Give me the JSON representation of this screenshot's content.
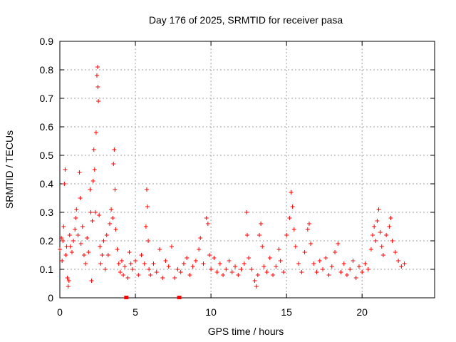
{
  "chart_data": {
    "type": "scatter",
    "title": "Day 176 of 2025, SRMTID for receiver pasa",
    "xlabel": "GPS time / hours",
    "ylabel": "SRMTID / TECUs",
    "xlim": [
      0,
      24.8
    ],
    "ylim": [
      0,
      0.9
    ],
    "xticks": [
      0,
      5,
      10,
      15,
      20
    ],
    "yticks": [
      0,
      0.1,
      0.2,
      0.3,
      0.4,
      0.5,
      0.6,
      0.7,
      0.8,
      0.9
    ],
    "xtick_labels": [
      "0",
      "5",
      "10",
      "15",
      "20"
    ],
    "ytick_labels": [
      "0",
      "0.1",
      "0.2",
      "0.3",
      "0.4",
      "0.5",
      "0.6",
      "0.7",
      "0.8",
      "0.9"
    ],
    "grid": true,
    "marker": "+",
    "color": "#ff0000",
    "series": [
      {
        "name": "SRMTID",
        "points": [
          [
            0.0,
            0.17
          ],
          [
            0.1,
            0.21
          ],
          [
            0.15,
            0.13
          ],
          [
            0.2,
            0.2
          ],
          [
            0.25,
            0.25
          ],
          [
            0.3,
            0.4
          ],
          [
            0.35,
            0.45
          ],
          [
            0.4,
            0.15
          ],
          [
            0.45,
            0.18
          ],
          [
            0.5,
            0.07
          ],
          [
            0.55,
            0.04
          ],
          [
            0.6,
            0.06
          ],
          [
            0.65,
            0.22
          ],
          [
            0.7,
            0.18
          ],
          [
            0.8,
            0.16
          ],
          [
            0.9,
            0.2
          ],
          [
            1.0,
            0.24
          ],
          [
            1.05,
            0.28
          ],
          [
            1.1,
            0.31
          ],
          [
            1.2,
            0.22
          ],
          [
            1.3,
            0.44
          ],
          [
            1.35,
            0.35
          ],
          [
            1.4,
            0.19
          ],
          [
            1.5,
            0.25
          ],
          [
            1.6,
            0.15
          ],
          [
            1.7,
            0.12
          ],
          [
            1.8,
            0.21
          ],
          [
            1.9,
            0.16
          ],
          [
            2.0,
            0.38
          ],
          [
            2.05,
            0.3
          ],
          [
            2.1,
            0.06
          ],
          [
            2.15,
            0.27
          ],
          [
            2.2,
            0.41
          ],
          [
            2.25,
            0.52
          ],
          [
            2.3,
            0.45
          ],
          [
            2.35,
            0.3
          ],
          [
            2.4,
            0.58
          ],
          [
            2.45,
            0.78
          ],
          [
            2.5,
            0.81
          ],
          [
            2.52,
            0.74
          ],
          [
            2.55,
            0.69
          ],
          [
            2.6,
            0.29
          ],
          [
            2.65,
            0.18
          ],
          [
            2.7,
            0.12
          ],
          [
            2.8,
            0.15
          ],
          [
            2.9,
            0.2
          ],
          [
            3.0,
            0.1
          ],
          [
            3.1,
            0.22
          ],
          [
            3.2,
            0.15
          ],
          [
            3.3,
            0.26
          ],
          [
            3.4,
            0.31
          ],
          [
            3.5,
            0.28
          ],
          [
            3.55,
            0.47
          ],
          [
            3.6,
            0.52
          ],
          [
            3.65,
            0.38
          ],
          [
            3.7,
            0.24
          ],
          [
            3.8,
            0.17
          ],
          [
            3.9,
            0.12
          ],
          [
            4.0,
            0.09
          ],
          [
            4.1,
            0.13
          ],
          [
            4.2,
            0.08
          ],
          [
            4.3,
            0.11
          ],
          [
            4.5,
            0.07
          ],
          [
            4.6,
            0.16
          ],
          [
            4.7,
            0.12
          ],
          [
            4.8,
            0.1
          ],
          [
            5.0,
            0.13
          ],
          [
            5.2,
            0.08
          ],
          [
            5.4,
            0.15
          ],
          [
            5.6,
            0.12
          ],
          [
            5.7,
            0.25
          ],
          [
            5.75,
            0.38
          ],
          [
            5.8,
            0.32
          ],
          [
            5.85,
            0.2
          ],
          [
            5.9,
            0.1
          ],
          [
            6.0,
            0.08
          ],
          [
            6.2,
            0.12
          ],
          [
            6.4,
            0.09
          ],
          [
            6.6,
            0.17
          ],
          [
            6.8,
            0.07
          ],
          [
            7.0,
            0.13
          ],
          [
            7.2,
            0.11
          ],
          [
            7.4,
            0.18
          ],
          [
            7.6,
            0.07
          ],
          [
            7.8,
            0.1
          ],
          [
            8.0,
            0.09
          ],
          [
            8.2,
            0.12
          ],
          [
            8.4,
            0.14
          ],
          [
            8.6,
            0.08
          ],
          [
            8.8,
            0.11
          ],
          [
            9.0,
            0.13
          ],
          [
            9.2,
            0.17
          ],
          [
            9.3,
            0.21
          ],
          [
            9.5,
            0.12
          ],
          [
            9.7,
            0.28
          ],
          [
            9.8,
            0.26
          ],
          [
            9.9,
            0.15
          ],
          [
            10.0,
            0.1
          ],
          [
            10.2,
            0.14
          ],
          [
            10.4,
            0.09
          ],
          [
            10.6,
            0.12
          ],
          [
            10.8,
            0.08
          ],
          [
            11.0,
            0.1
          ],
          [
            11.2,
            0.13
          ],
          [
            11.4,
            0.09
          ],
          [
            11.6,
            0.11
          ],
          [
            11.8,
            0.08
          ],
          [
            12.0,
            0.1
          ],
          [
            12.2,
            0.12
          ],
          [
            12.35,
            0.3
          ],
          [
            12.4,
            0.22
          ],
          [
            12.5,
            0.14
          ],
          [
            12.7,
            0.1
          ],
          [
            12.9,
            0.06
          ],
          [
            13.0,
            0.04
          ],
          [
            13.1,
            0.08
          ],
          [
            13.2,
            0.22
          ],
          [
            13.3,
            0.26
          ],
          [
            13.4,
            0.18
          ],
          [
            13.5,
            0.11
          ],
          [
            13.7,
            0.09
          ],
          [
            13.9,
            0.14
          ],
          [
            14.1,
            0.08
          ],
          [
            14.3,
            0.11
          ],
          [
            14.5,
            0.17
          ],
          [
            14.6,
            0.13
          ],
          [
            14.8,
            0.09
          ],
          [
            15.0,
            0.22
          ],
          [
            15.2,
            0.28
          ],
          [
            15.3,
            0.37
          ],
          [
            15.4,
            0.32
          ],
          [
            15.5,
            0.24
          ],
          [
            15.6,
            0.18
          ],
          [
            15.8,
            0.12
          ],
          [
            16.0,
            0.09
          ],
          [
            16.2,
            0.16
          ],
          [
            16.4,
            0.24
          ],
          [
            16.5,
            0.26
          ],
          [
            16.6,
            0.19
          ],
          [
            16.8,
            0.12
          ],
          [
            17.0,
            0.09
          ],
          [
            17.2,
            0.13
          ],
          [
            17.4,
            0.1
          ],
          [
            17.6,
            0.14
          ],
          [
            17.8,
            0.08
          ],
          [
            18.0,
            0.11
          ],
          [
            18.2,
            0.16
          ],
          [
            18.4,
            0.19
          ],
          [
            18.6,
            0.09
          ],
          [
            18.8,
            0.12
          ],
          [
            19.0,
            0.08
          ],
          [
            19.2,
            0.1
          ],
          [
            19.4,
            0.13
          ],
          [
            19.6,
            0.07
          ],
          [
            19.8,
            0.11
          ],
          [
            20.0,
            0.09
          ],
          [
            20.2,
            0.12
          ],
          [
            20.4,
            0.1
          ],
          [
            20.6,
            0.17
          ],
          [
            20.7,
            0.22
          ],
          [
            20.8,
            0.25
          ],
          [
            20.9,
            0.2
          ],
          [
            21.0,
            0.27
          ],
          [
            21.1,
            0.31
          ],
          [
            21.2,
            0.23
          ],
          [
            21.3,
            0.18
          ],
          [
            21.4,
            0.15
          ],
          [
            21.6,
            0.22
          ],
          [
            21.8,
            0.25
          ],
          [
            21.9,
            0.28
          ],
          [
            22.0,
            0.2
          ],
          [
            22.2,
            0.16
          ],
          [
            22.4,
            0.13
          ],
          [
            22.6,
            0.11
          ],
          [
            22.8,
            0.12
          ]
        ]
      }
    ],
    "gap_markers_x": [
      4.4,
      7.9
    ]
  }
}
